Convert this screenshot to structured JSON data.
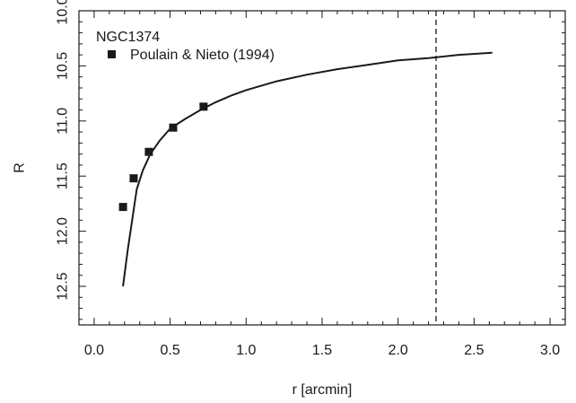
{
  "chart_data": {
    "type": "line",
    "title": "",
    "xlabel": "r [arcmin]",
    "ylabel": "R",
    "xlim": [
      -0.1,
      3.1
    ],
    "ylim": [
      12.85,
      10.0
    ],
    "y_inverted": true,
    "x_ticks": [
      0.0,
      0.5,
      1.0,
      1.5,
      2.0,
      2.5,
      3.0
    ],
    "x_tick_labels": [
      "0.0",
      "0.5",
      "1.0",
      "1.5",
      "2.0",
      "2.5",
      "3.0"
    ],
    "y_ticks": [
      10.0,
      10.5,
      11.0,
      11.5,
      12.0,
      12.5
    ],
    "y_tick_labels": [
      "10.0",
      "10.5",
      "11.0",
      "11.5",
      "12.0",
      "12.5"
    ],
    "grid": false,
    "legend_position": "top-left",
    "annotation": "NGC1374",
    "series": [
      {
        "name": "Poulain & Nieto (1994)",
        "kind": "scatter",
        "marker": "square",
        "x": [
          0.19,
          0.26,
          0.36,
          0.52,
          0.72
        ],
        "y": [
          11.78,
          11.52,
          11.28,
          11.06,
          10.87
        ]
      },
      {
        "name": "",
        "kind": "line",
        "x": [
          0.19,
          0.22,
          0.25,
          0.28,
          0.32,
          0.37,
          0.43,
          0.5,
          0.6,
          0.7,
          0.8,
          0.9,
          1.0,
          1.2,
          1.4,
          1.6,
          1.8,
          2.0,
          2.2,
          2.4,
          2.62
        ],
        "y": [
          12.5,
          12.18,
          11.9,
          11.62,
          11.45,
          11.3,
          11.18,
          11.07,
          10.98,
          10.9,
          10.83,
          10.77,
          10.72,
          10.64,
          10.58,
          10.53,
          10.49,
          10.45,
          10.43,
          10.4,
          10.38
        ]
      }
    ],
    "vline": {
      "x": 2.25,
      "style": "dashed"
    }
  }
}
